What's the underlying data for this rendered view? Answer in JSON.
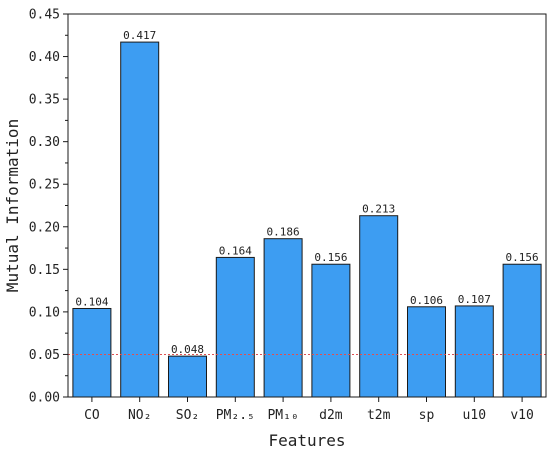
{
  "chart_data": {
    "type": "bar",
    "categories": [
      "CO",
      "NO₂",
      "SO₂",
      "PM₂.₅",
      "PM₁₀",
      "d2m",
      "t2m",
      "sp",
      "u10",
      "v10"
    ],
    "values": [
      0.104,
      0.417,
      0.048,
      0.164,
      0.186,
      0.156,
      0.213,
      0.106,
      0.107,
      0.156
    ],
    "data_labels": [
      "0.104",
      "0.417",
      "0.048",
      "0.164",
      "0.186",
      "0.156",
      "0.213",
      "0.106",
      "0.107",
      "0.156"
    ],
    "xlabel": "Features",
    "ylabel": "Mutual Information",
    "ylim": [
      0,
      0.45
    ],
    "yticks": [
      0,
      0.05,
      0.1,
      0.15,
      0.2,
      0.25,
      0.3,
      0.35,
      0.4,
      0.45
    ],
    "ytick_labels": [
      "0.00",
      "0.05",
      "0.10",
      "0.15",
      "0.20",
      "0.25",
      "0.30",
      "0.35",
      "0.40",
      "0.45"
    ],
    "reference_line": 0.05,
    "grid": false,
    "colors": {
      "bar": "#3d9df2",
      "bar_edge": "#1a1a1a",
      "reference_line": "#e05050"
    }
  }
}
